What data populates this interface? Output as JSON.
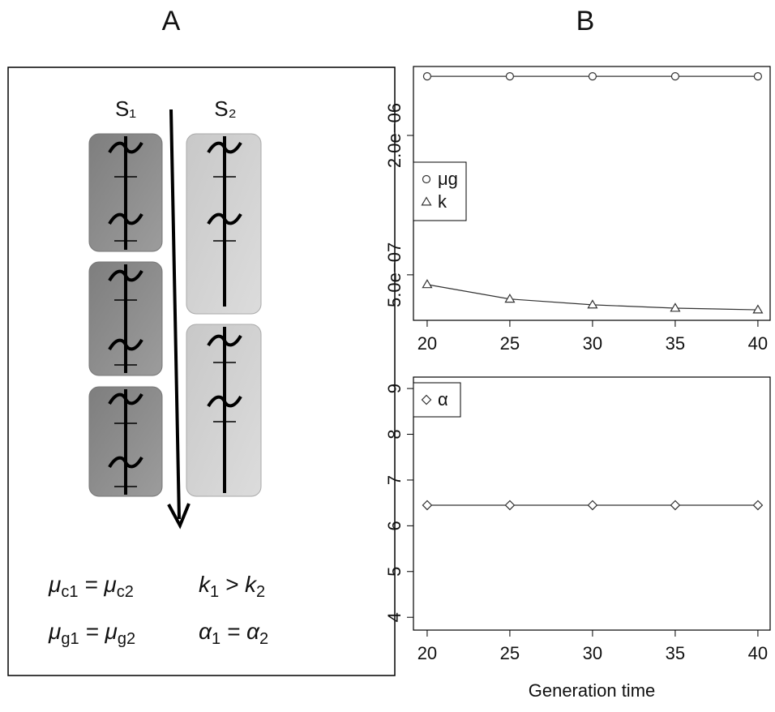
{
  "panel_labels": [
    "A",
    "B"
  ],
  "diagram": {
    "strands": [
      "S₁",
      "S₂"
    ],
    "equations": [
      [
        {
          "text": "μ"
        },
        {
          "sub": "c1"
        },
        {
          "text": " = μ"
        },
        {
          "sub": "c2"
        }
      ],
      [
        {
          "text": "k"
        },
        {
          "sub": "1"
        },
        {
          "text": " > k"
        },
        {
          "sub": "2"
        }
      ],
      [
        {
          "text": "μ"
        },
        {
          "sub": "g1"
        },
        {
          "text": " = μ"
        },
        {
          "sub": "g2"
        }
      ],
      [
        {
          "text": "α"
        },
        {
          "sub": "1"
        },
        {
          "text": " = α"
        },
        {
          "sub": "2"
        }
      ]
    ]
  },
  "chart_data": [
    {
      "type": "line",
      "log_y": true,
      "legend": "left",
      "x": [
        20,
        25,
        30,
        35,
        40
      ],
      "series": [
        {
          "name": "μg",
          "color": "#333333",
          "marker": "circle",
          "values": [
            3.6e-06,
            3.6e-06,
            3.6e-06,
            3.6e-06,
            3.6e-06
          ]
        },
        {
          "name": "k",
          "color": "#333333",
          "marker": "triangle",
          "values": [
            4.54e-07,
            3.93e-07,
            3.71e-07,
            3.59e-07,
            3.53e-07
          ]
        }
      ],
      "xlim": [
        19.17,
        40.74
      ],
      "xticks": [
        20,
        25,
        30,
        35,
        40
      ],
      "ylim": [
        3.18e-07,
        3.97e-06
      ],
      "yticks": [
        {
          "value": 5e-07,
          "label": "5.0e−07"
        },
        {
          "value": 2e-06,
          "label": "2.0e−06"
        }
      ]
    },
    {
      "type": "line",
      "log_y": false,
      "legend": "top left",
      "x": [
        20,
        25,
        30,
        35,
        40
      ],
      "series": [
        {
          "name": "α",
          "color": "#333333",
          "marker": "diamond",
          "values": [
            6.45,
            6.45,
            6.45,
            6.45,
            6.45
          ]
        }
      ],
      "xlim": [
        19.17,
        40.74
      ],
      "xticks": [
        20,
        25,
        30,
        35,
        40
      ],
      "ylim": [
        3.72,
        9.25
      ],
      "yticks": [
        4,
        5,
        6,
        7,
        8,
        9
      ],
      "xlabel": "Generation time"
    }
  ]
}
